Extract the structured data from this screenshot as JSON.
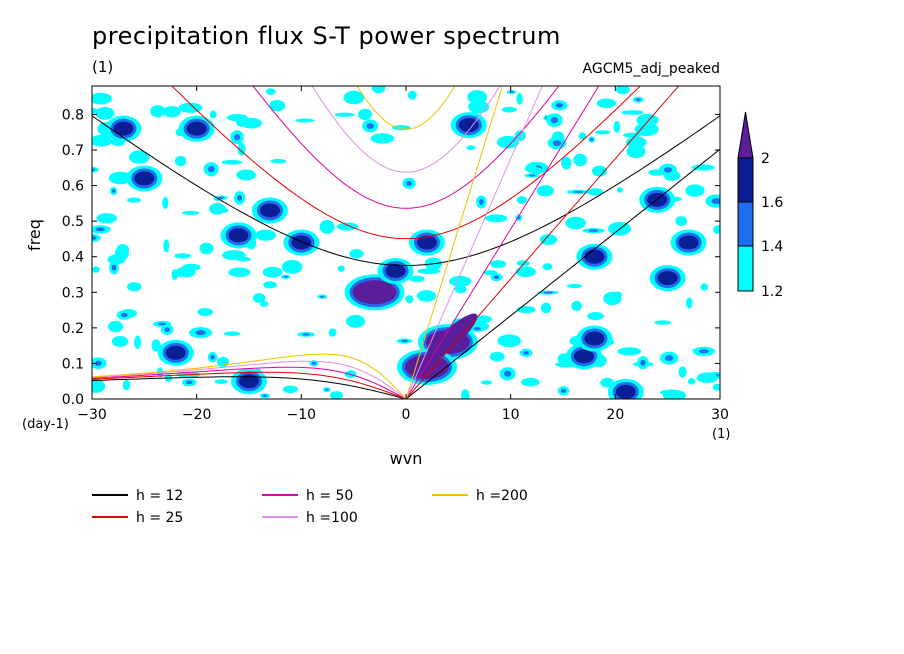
{
  "title": "precipitation flux S-T power spectrum",
  "subtitle_unit": "(1)",
  "run_name": "AGCM5_adj_peaked",
  "chart_data": {
    "type": "contour",
    "xlabel": "wvn",
    "ylabel": "freq",
    "xunit": "(1)",
    "yunit": "(day-1)",
    "xlim": [
      -30,
      30
    ],
    "ylim": [
      0.0,
      0.88
    ],
    "xticks": [
      -30,
      -20,
      -10,
      0,
      10,
      20,
      30
    ],
    "yticks": [
      0.0,
      0.1,
      0.2,
      0.3,
      0.4,
      0.5,
      0.6,
      0.7,
      0.8
    ],
    "xticklabels": [
      "−30",
      "−20",
      "−10",
      "0",
      "10",
      "20",
      "30"
    ],
    "yticklabels": [
      "0.0",
      "0.1",
      "0.2",
      "0.3",
      "0.4",
      "0.5",
      "0.6",
      "0.7",
      "0.8"
    ],
    "colorbar": {
      "levels": [
        "1.2",
        "1.4",
        "1.6",
        "2"
      ],
      "colors": [
        "#00ffff",
        "#1e6ef0",
        "#0a1e96",
        "#5a1e9a"
      ]
    },
    "dispersion_curves": [
      {
        "label": "h = 12",
        "h": 12,
        "color": "#000000"
      },
      {
        "label": "h = 25",
        "h": 25,
        "color": "#e00000"
      },
      {
        "label": "h = 50",
        "h": 50,
        "color": "#e000a0"
      },
      {
        "label": "h =100",
        "h": 100,
        "color": "#e090e0"
      },
      {
        "label": "h =200",
        "h": 200,
        "color": "#f0c000"
      }
    ],
    "peaks": [
      {
        "x": -3.0,
        "y": 0.3,
        "level": 2
      },
      {
        "x": 4.0,
        "y": 0.16,
        "level": 2
      },
      {
        "x": 2.0,
        "y": 0.09,
        "level": 2
      },
      {
        "x": 24.0,
        "y": 0.56,
        "level": 1.6
      },
      {
        "x": 6.0,
        "y": 0.77,
        "level": 1.6
      },
      {
        "x": -13.0,
        "y": 0.53,
        "level": 1.6
      },
      {
        "x": -20.0,
        "y": 0.76,
        "level": 1.6
      },
      {
        "x": -27.0,
        "y": 0.76,
        "level": 1.6
      },
      {
        "x": 18.0,
        "y": 0.4,
        "level": 1.6
      },
      {
        "x": 27.0,
        "y": 0.44,
        "level": 1.6
      },
      {
        "x": 2.0,
        "y": 0.44,
        "level": 1.6
      },
      {
        "x": -16.0,
        "y": 0.46,
        "level": 1.6
      },
      {
        "x": -25.0,
        "y": 0.62,
        "level": 1.6
      },
      {
        "x": -15.0,
        "y": 0.05,
        "level": 1.6
      },
      {
        "x": -22.0,
        "y": 0.13,
        "level": 1.6
      },
      {
        "x": 17.0,
        "y": 0.12,
        "level": 1.6
      },
      {
        "x": 25.0,
        "y": 0.34,
        "level": 1.6
      },
      {
        "x": 18.0,
        "y": 0.17,
        "level": 1.6
      },
      {
        "x": 21.0,
        "y": 0.02,
        "level": 1.6
      },
      {
        "x": -1.0,
        "y": 0.36,
        "level": 1.6
      },
      {
        "x": -10.0,
        "y": 0.44,
        "level": 1.6
      }
    ]
  },
  "legend": {
    "items": [
      "h = 12",
      "h = 25",
      "h = 50",
      "h =100",
      "h =200"
    ]
  }
}
